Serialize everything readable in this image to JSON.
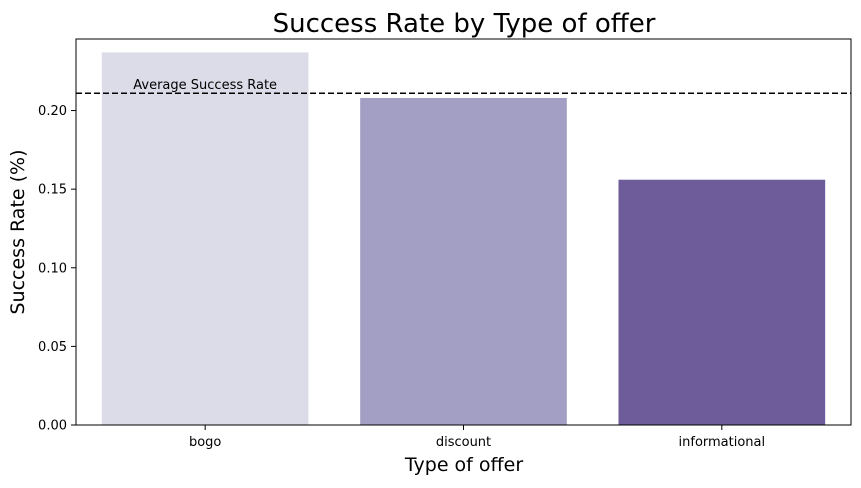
{
  "chart_data": {
    "type": "bar",
    "title": "Success Rate by Type of offer",
    "xlabel": "Type of offer",
    "ylabel": "Success Rate (%)",
    "categories": [
      "bogo",
      "discount",
      "informational"
    ],
    "values": [
      0.237,
      0.208,
      0.156
    ],
    "colors": [
      "#dcdce9",
      "#a39fc4",
      "#6e5b99"
    ],
    "ylim": [
      0,
      0.2455
    ],
    "yticks": [
      "0.00",
      "0.05",
      "0.10",
      "0.15",
      "0.20"
    ],
    "ytick_values": [
      0,
      0.05,
      0.1,
      0.15,
      0.2
    ],
    "reference_line": {
      "label": "Average Success Rate",
      "value": 0.211,
      "style": "dashed",
      "color": "#000000"
    },
    "grid": false,
    "legend": "none"
  }
}
